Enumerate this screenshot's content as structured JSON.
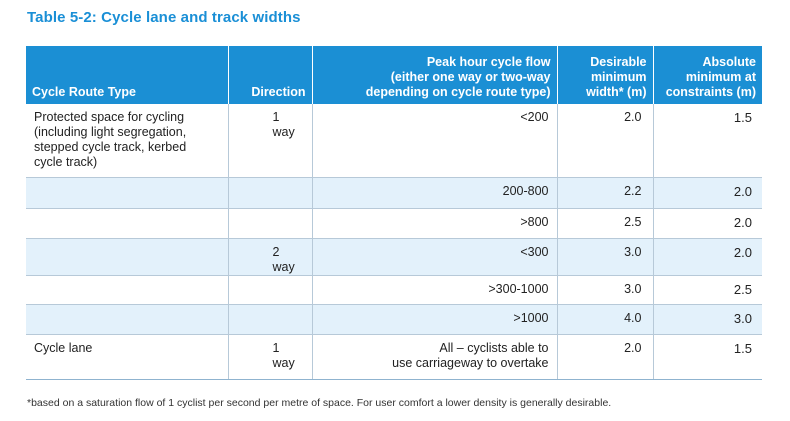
{
  "title": "Table 5-2: Cycle lane and track widths",
  "headers": {
    "route_type": "Cycle Route Type",
    "direction": "Direction",
    "flow_line1": "Peak hour cycle flow",
    "flow_line2": "(either one way or two-way",
    "flow_line3": "depending on cycle route type)",
    "desirable_line1": "Desirable",
    "desirable_line2": "minimum",
    "desirable_line3": "width* (m)",
    "absolute_line1": "Absolute",
    "absolute_line2": "minimum at",
    "absolute_line3": "constraints (m)"
  },
  "rows": [
    {
      "route_lines": [
        "Protected space for cycling",
        "(including light segregation,",
        "stepped cycle track, kerbed",
        "cycle track)"
      ],
      "direction": "1 way",
      "flow_lines": [
        "<200",
        ""
      ],
      "desirable": "2.0",
      "absolute": "1.5"
    },
    {
      "route_lines": [
        "",
        "",
        "",
        ""
      ],
      "direction": "",
      "flow_lines": [
        "200-800",
        ""
      ],
      "desirable": "2.2",
      "absolute": "2.0"
    },
    {
      "route_lines": [
        "",
        "",
        "",
        ""
      ],
      "direction": "",
      "flow_lines": [
        ">800",
        ""
      ],
      "desirable": "2.5",
      "absolute": "2.0"
    },
    {
      "route_lines": [
        "",
        "",
        "",
        ""
      ],
      "direction": "2 way",
      "flow_lines": [
        "<300",
        ""
      ],
      "desirable": "3.0",
      "absolute": "2.0"
    },
    {
      "route_lines": [
        "",
        "",
        "",
        ""
      ],
      "direction": "",
      "flow_lines": [
        ">300-1000",
        ""
      ],
      "desirable": "3.0",
      "absolute": "2.5"
    },
    {
      "route_lines": [
        "",
        "",
        "",
        ""
      ],
      "direction": "",
      "flow_lines": [
        ">1000",
        ""
      ],
      "desirable": "4.0",
      "absolute": "3.0"
    },
    {
      "route_lines": [
        "Cycle lane",
        "",
        "",
        ""
      ],
      "direction": "1 way",
      "flow_lines": [
        "All – cyclists able to",
        "use carriageway to overtake"
      ],
      "desirable": "2.0",
      "absolute": "1.5"
    }
  ],
  "footnote": "*based on a saturation flow of 1 cyclist per second per metre of space. For user comfort a lower density is generally desirable.",
  "colors": {
    "title": "#1a8fd6",
    "header_bg": "#1b8fd4",
    "shaded_row": "#e3f1fb",
    "grid_line": "#b7c9d8"
  }
}
